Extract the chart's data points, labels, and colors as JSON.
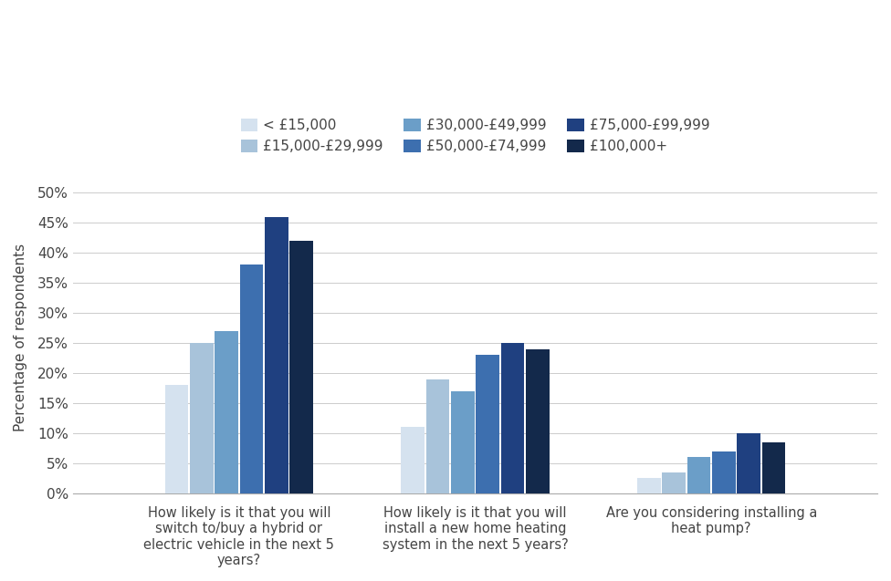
{
  "categories": [
    "How likely is it that you will\nswitch to/buy a hybrid or\nelectric vehicle in the next 5\nyears?",
    "How likely is it that you will\ninstall a new home heating\nsystem in the next 5 years?",
    "Are you considering installing a\nheat pump?"
  ],
  "income_bands": [
    "< £15,000",
    "£15,000-£29,999",
    "£30,000-£49,999",
    "£50,000-£74,999",
    "£75,000-£99,999",
    "£100,000+"
  ],
  "colors": [
    "#d5e2ef",
    "#a8c3da",
    "#6b9ec8",
    "#3d6faf",
    "#1f4080",
    "#13294b"
  ],
  "values": [
    [
      0.18,
      0.25,
      0.27,
      0.38,
      0.46,
      0.42
    ],
    [
      0.11,
      0.19,
      0.17,
      0.23,
      0.25,
      0.24
    ],
    [
      0.025,
      0.035,
      0.06,
      0.07,
      0.1,
      0.085
    ]
  ],
  "ylabel": "Percentage of respondents",
  "ylim": [
    0,
    0.52
  ],
  "yticks": [
    0.0,
    0.05,
    0.1,
    0.15,
    0.2,
    0.25,
    0.3,
    0.35,
    0.4,
    0.45,
    0.5
  ],
  "ytick_labels": [
    "0%",
    "5%",
    "10%",
    "15%",
    "20%",
    "25%",
    "30%",
    "35%",
    "40%",
    "45%",
    "50%"
  ],
  "background_color": "#ffffff",
  "grid_color": "#cccccc"
}
